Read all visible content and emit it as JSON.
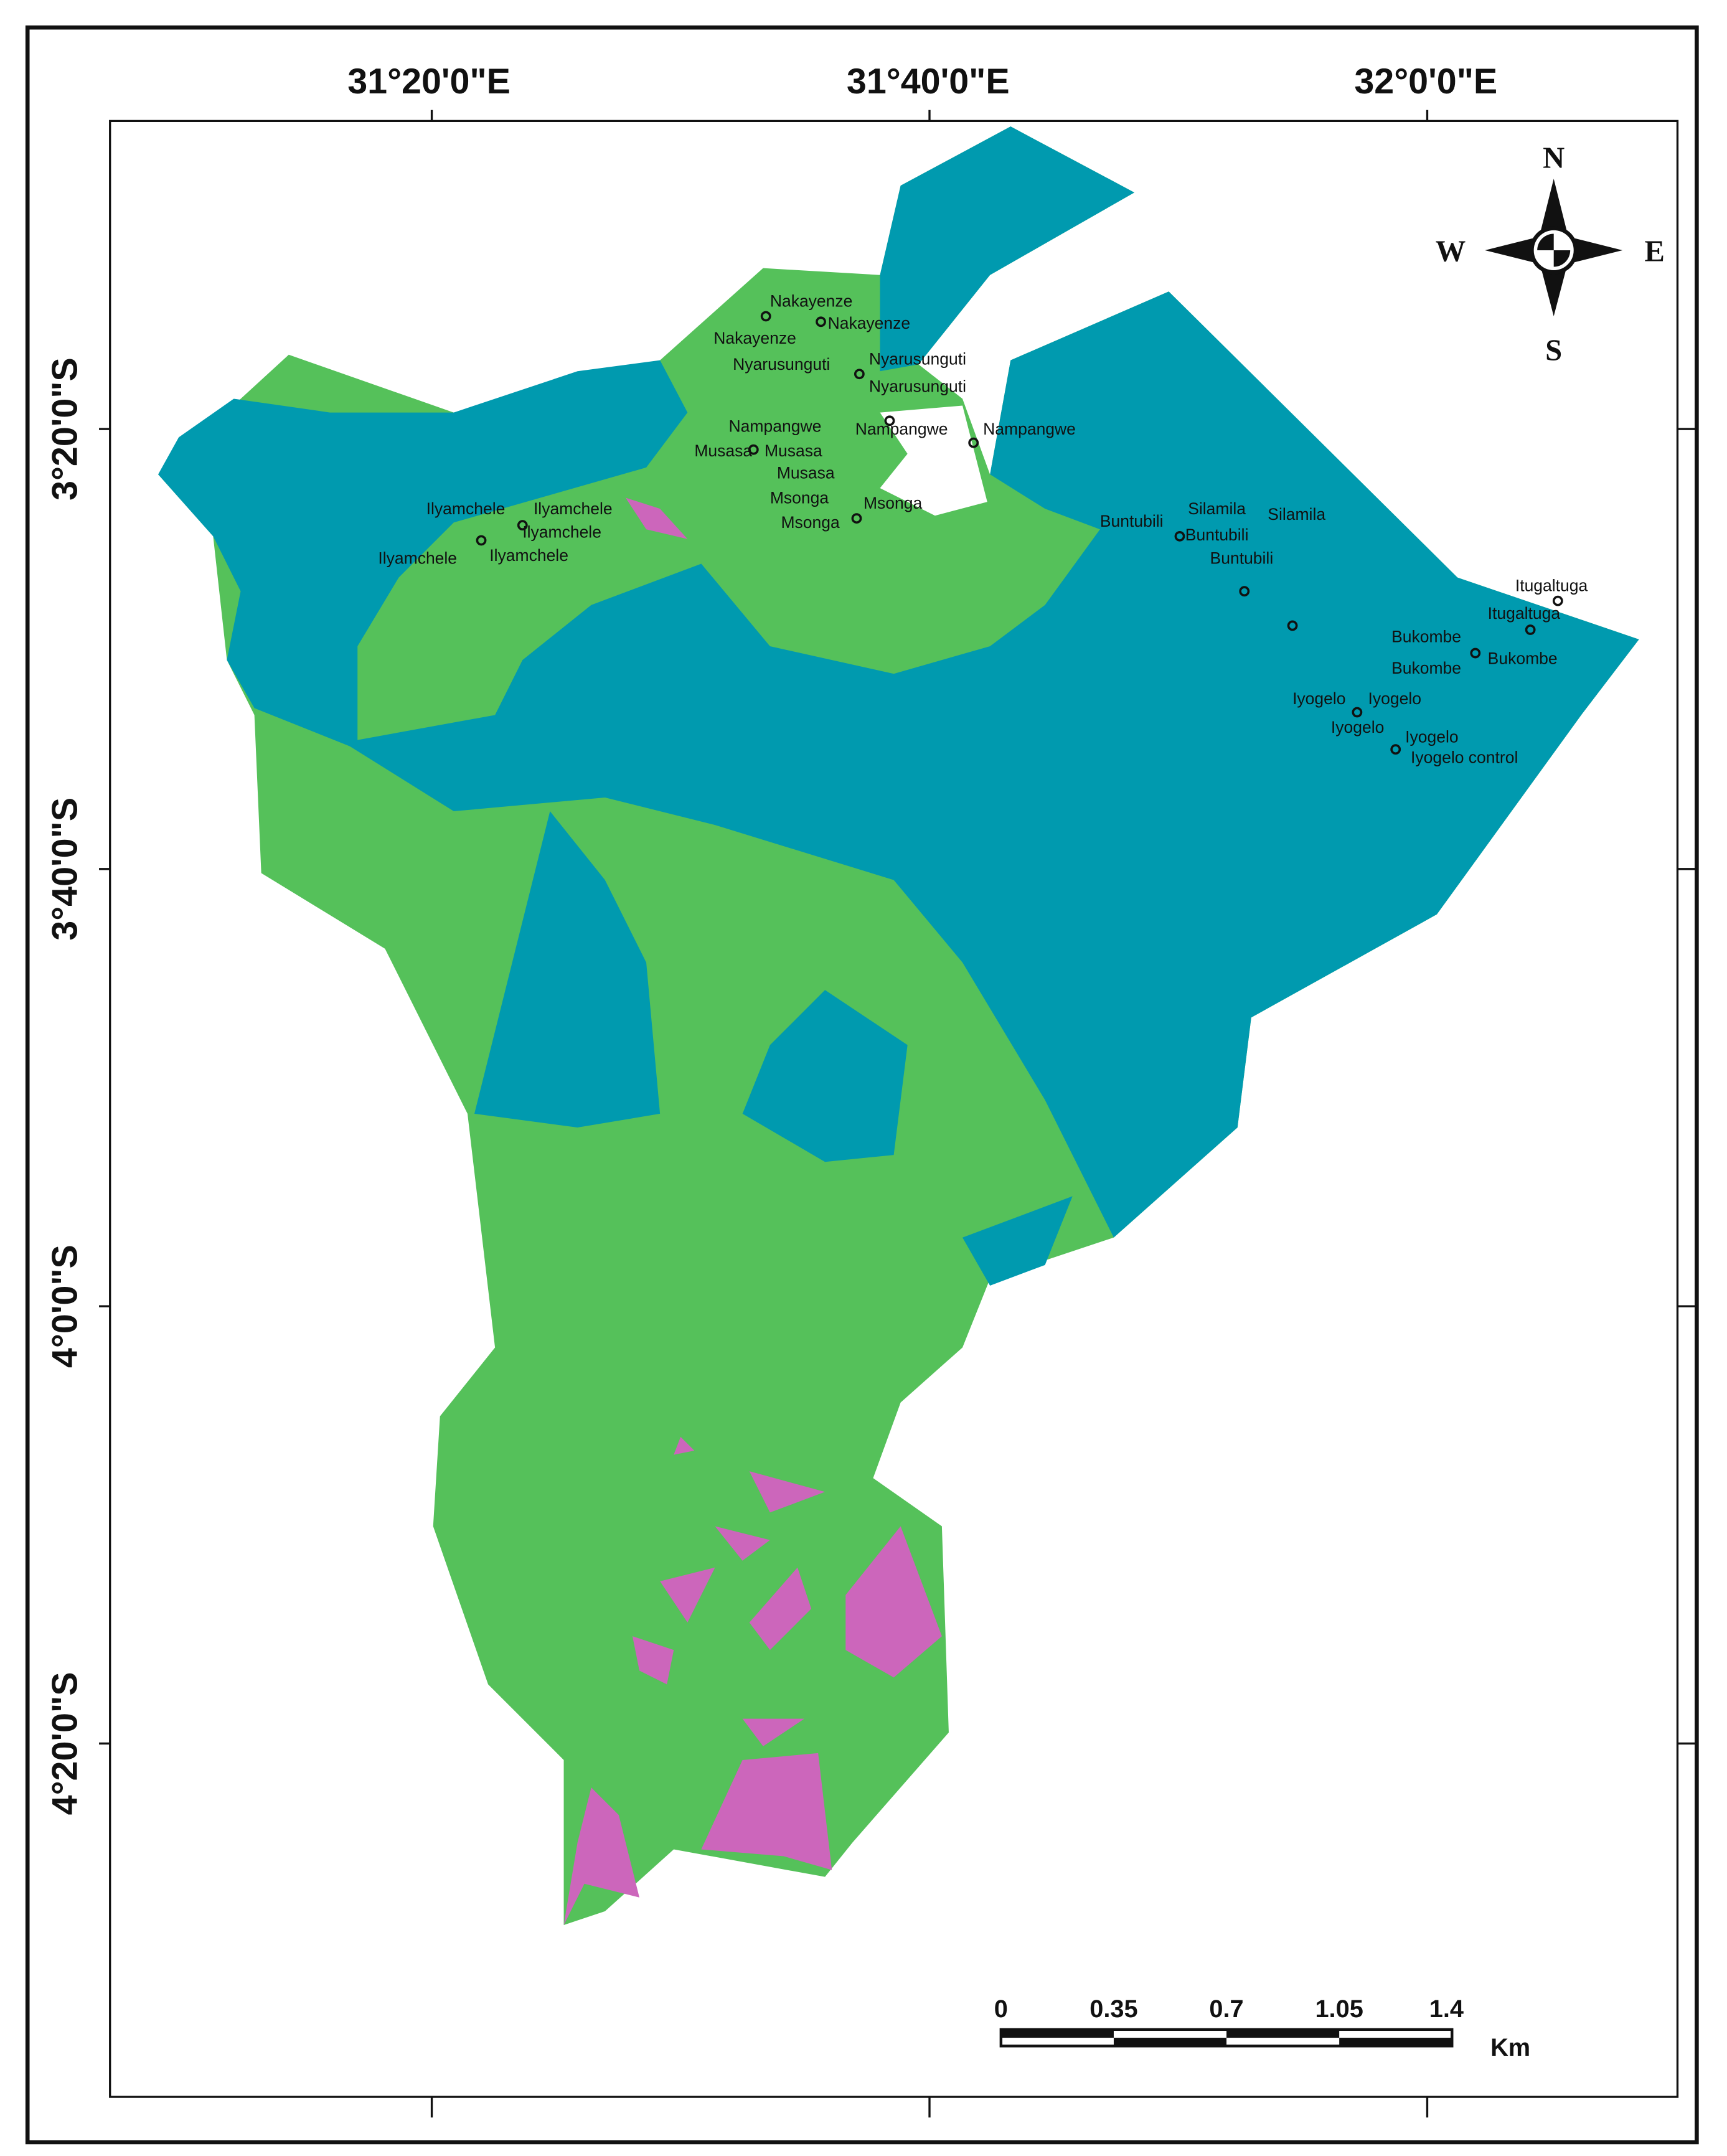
{
  "map": {
    "longitude_labels": [
      "31°20'0\"E",
      "31°40'0\"E",
      "32°0'0\"E"
    ],
    "latitude_labels": [
      "3°20'0\"S",
      "3°40'0\"S",
      "4°0'0\"S",
      "4°20'0\"S"
    ],
    "compass": {
      "north": "N",
      "south": "S",
      "east": "E",
      "west": "W"
    },
    "scale_bar": {
      "labels": [
        "0",
        "0.35",
        "0.7",
        "1.05",
        "1.4"
      ],
      "unit": "Km"
    },
    "places": [
      "Nakayenze",
      "Nakayenze",
      "Nakayenze",
      "Nyarusunguti",
      "Nyarusunguti",
      "Nyarusunguti",
      "Nampangwe",
      "Nampangwe",
      "Nampangwe",
      "Musasa",
      "Musasa",
      "Musasa",
      "Msonga",
      "Msonga",
      "Msonga",
      "Ilyamchele",
      "Ilyamchele",
      "Ilyamchele",
      "Ilyamchele",
      "Ilyamchele",
      "Silamila",
      "Silamila",
      "Buntubili",
      "Buntubili",
      "Buntubili",
      "Itugaltuga",
      "Itugaltuga",
      "Bukombe",
      "Bukombe",
      "Bukombe",
      "Iyogelo",
      "Iyogelo",
      "Iyogelo",
      "Iyogelo",
      "Iyogelo control"
    ]
  }
}
